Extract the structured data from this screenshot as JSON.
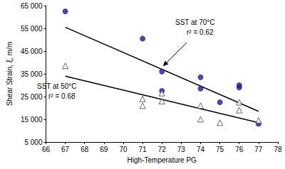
{
  "chart_data": {
    "type": "scatter",
    "x_label": "High-Temperature PG",
    "y_label": "Shear Strain, ξ, m/m",
    "xlim": [
      66,
      78
    ],
    "xticks": [
      66,
      67,
      68,
      69,
      70,
      71,
      72,
      73,
      74,
      75,
      76,
      77,
      78
    ],
    "ylim": [
      5000,
      65000
    ],
    "yticks": [
      {
        "value": 5000,
        "label": "5 000"
      },
      {
        "value": 15000,
        "label": "15 000"
      },
      {
        "value": 25000,
        "label": "25 000"
      },
      {
        "value": 35000,
        "label": "35 000"
      },
      {
        "value": 45000,
        "label": "45 000"
      },
      {
        "value": 55000,
        "label": "55 000"
      },
      {
        "value": 65000,
        "label": "65 000"
      }
    ],
    "grid": false,
    "series": [
      {
        "name": "SST at 70°C",
        "color": "#1c1c8c",
        "marker": "circle",
        "x": [
          67,
          71,
          72,
          72,
          74,
          74,
          75,
          76,
          76,
          77
        ],
        "values": [
          62500,
          50500,
          36000,
          27500,
          33500,
          28500,
          22500,
          30000,
          29000,
          13000
        ],
        "trend_x": [
          67,
          77
        ],
        "trend_values": [
          55500,
          18500
        ],
        "annotation": [
          "SST at 70°C",
          "r² = 0.62"
        ]
      },
      {
        "name": "SST at 50°C",
        "color": "#404040",
        "marker": "triangle",
        "x": [
          67,
          71,
          71,
          72,
          72,
          74,
          74,
          75,
          76,
          76,
          77
        ],
        "values": [
          38500,
          24000,
          21000,
          26500,
          23000,
          21000,
          15000,
          13500,
          22500,
          19000,
          14500
        ],
        "trend_x": [
          67,
          77
        ],
        "trend_values": [
          34000,
          13500
        ],
        "annotation": [
          "SST at 50°C",
          "r² = 0.68"
        ]
      }
    ]
  }
}
